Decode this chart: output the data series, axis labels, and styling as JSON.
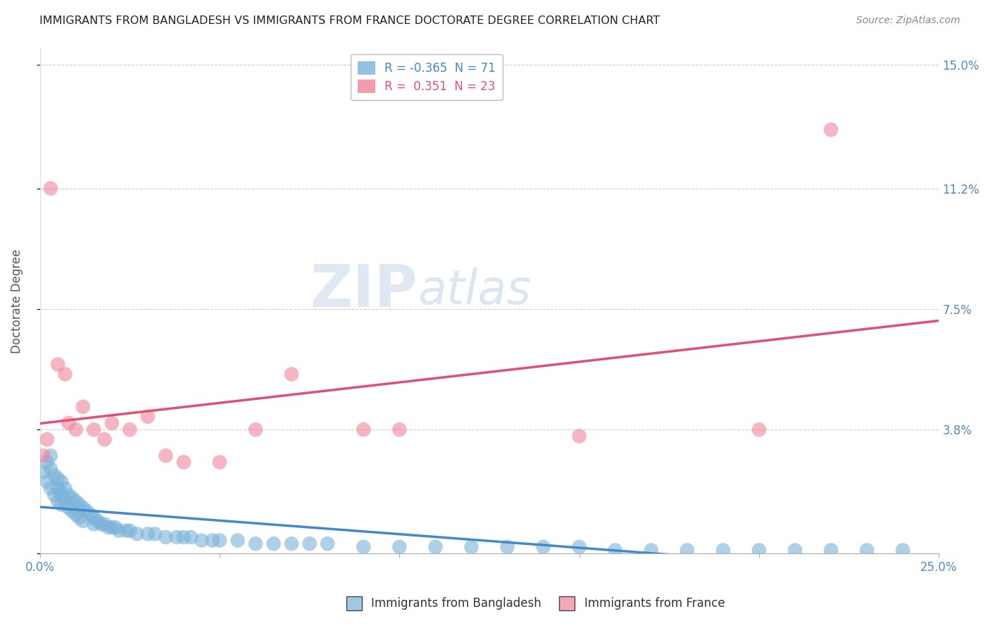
{
  "title": "IMMIGRANTS FROM BANGLADESH VS IMMIGRANTS FROM FRANCE DOCTORATE DEGREE CORRELATION CHART",
  "source": "Source: ZipAtlas.com",
  "ylabel": "Doctorate Degree",
  "xlim": [
    0.0,
    0.25
  ],
  "ylim": [
    0.0,
    0.155
  ],
  "yticks": [
    0.0,
    0.038,
    0.075,
    0.112,
    0.15
  ],
  "ytick_labels_right": [
    "",
    "3.8%",
    "7.5%",
    "11.2%",
    "15.0%"
  ],
  "xticks": [
    0.0,
    0.05,
    0.1,
    0.15,
    0.2,
    0.25
  ],
  "xtick_labels": [
    "0.0%",
    "",
    "",
    "",
    "",
    "25.0%"
  ],
  "bangladesh_color": "#7ab3d9",
  "france_color": "#f0849a",
  "watermark_zip": "ZIP",
  "watermark_atlas": "atlas",
  "background_color": "#ffffff",
  "title_color": "#222222",
  "axis_label_color": "#555555",
  "tick_color": "#5588bb",
  "grid_color": "#cccccc",
  "legend_R_bangladesh": "-0.365",
  "legend_N_bangladesh": "71",
  "legend_R_france": "0.351",
  "legend_N_france": "23",
  "bangladesh_x": [
    0.001,
    0.002,
    0.002,
    0.003,
    0.003,
    0.003,
    0.004,
    0.004,
    0.005,
    0.005,
    0.005,
    0.006,
    0.006,
    0.006,
    0.007,
    0.007,
    0.008,
    0.008,
    0.009,
    0.009,
    0.01,
    0.01,
    0.011,
    0.011,
    0.012,
    0.012,
    0.013,
    0.014,
    0.015,
    0.015,
    0.016,
    0.017,
    0.018,
    0.019,
    0.02,
    0.021,
    0.022,
    0.024,
    0.025,
    0.027,
    0.03,
    0.032,
    0.035,
    0.038,
    0.04,
    0.042,
    0.045,
    0.048,
    0.05,
    0.055,
    0.06,
    0.065,
    0.07,
    0.075,
    0.08,
    0.09,
    0.1,
    0.11,
    0.12,
    0.13,
    0.14,
    0.15,
    0.16,
    0.17,
    0.18,
    0.19,
    0.2,
    0.21,
    0.22,
    0.23,
    0.24
  ],
  "bangladesh_y": [
    0.025,
    0.028,
    0.022,
    0.03,
    0.026,
    0.02,
    0.024,
    0.018,
    0.023,
    0.02,
    0.016,
    0.022,
    0.018,
    0.015,
    0.02,
    0.016,
    0.018,
    0.014,
    0.017,
    0.013,
    0.016,
    0.012,
    0.015,
    0.011,
    0.014,
    0.01,
    0.013,
    0.012,
    0.011,
    0.009,
    0.01,
    0.009,
    0.009,
    0.008,
    0.008,
    0.008,
    0.007,
    0.007,
    0.007,
    0.006,
    0.006,
    0.006,
    0.005,
    0.005,
    0.005,
    0.005,
    0.004,
    0.004,
    0.004,
    0.004,
    0.003,
    0.003,
    0.003,
    0.003,
    0.003,
    0.002,
    0.002,
    0.002,
    0.002,
    0.002,
    0.002,
    0.002,
    0.001,
    0.001,
    0.001,
    0.001,
    0.001,
    0.001,
    0.001,
    0.001,
    0.001
  ],
  "france_x": [
    0.001,
    0.002,
    0.003,
    0.005,
    0.007,
    0.008,
    0.01,
    0.012,
    0.015,
    0.018,
    0.02,
    0.025,
    0.03,
    0.035,
    0.04,
    0.05,
    0.06,
    0.07,
    0.09,
    0.1,
    0.15,
    0.2,
    0.22
  ],
  "france_y": [
    0.03,
    0.035,
    0.112,
    0.058,
    0.055,
    0.04,
    0.038,
    0.045,
    0.038,
    0.035,
    0.04,
    0.038,
    0.042,
    0.03,
    0.028,
    0.028,
    0.038,
    0.055,
    0.038,
    0.038,
    0.036,
    0.038,
    0.13
  ]
}
